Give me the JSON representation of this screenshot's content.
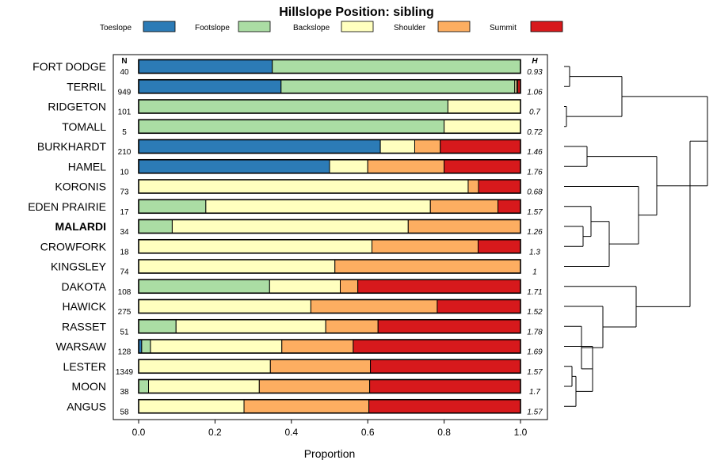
{
  "chart_data": {
    "type": "bar",
    "orientation": "horizontal",
    "stacked": true,
    "title": "Hillslope Position: sibling",
    "xlabel": "Proportion",
    "ylabel": "",
    "xlim": [
      0,
      1
    ],
    "x_ticks": [
      "0.0",
      "0.2",
      "0.4",
      "0.6",
      "0.8",
      "1.0"
    ],
    "n_header": "N",
    "h_header": "H",
    "categories_legend": [
      {
        "name": "Toeslope",
        "color": "#2c7bb6"
      },
      {
        "name": "Footslope",
        "color": "#abdda4"
      },
      {
        "name": "Backslope",
        "color": "#ffffbf"
      },
      {
        "name": "Shoulder",
        "color": "#fdae61"
      },
      {
        "name": "Summit",
        "color": "#d7191c"
      }
    ],
    "rows": [
      {
        "name": "FORT DODGE",
        "n": "40",
        "h": "0.93",
        "bold": false,
        "values": [
          0.35,
          0.65,
          0,
          0,
          0
        ]
      },
      {
        "name": "TERRIL",
        "n": "949",
        "h": "1.06",
        "bold": false,
        "values": [
          0.373,
          0.612,
          0.005,
          0.003,
          0.007
        ]
      },
      {
        "name": "RIDGETON",
        "n": "101",
        "h": "0.7",
        "bold": false,
        "values": [
          0,
          0.81,
          0.19,
          0,
          0
        ]
      },
      {
        "name": "TOMALL",
        "n": "5",
        "h": "0.72",
        "bold": false,
        "values": [
          0,
          0.8,
          0.2,
          0,
          0
        ]
      },
      {
        "name": "BURKHARDT",
        "n": "210",
        "h": "1.46",
        "bold": false,
        "values": [
          0.633,
          0,
          0.09,
          0.067,
          0.21
        ]
      },
      {
        "name": "HAMEL",
        "n": "10",
        "h": "1.76",
        "bold": false,
        "values": [
          0.5,
          0,
          0.1,
          0.2,
          0.2
        ]
      },
      {
        "name": "KORONIS",
        "n": "73",
        "h": "0.68",
        "bold": false,
        "values": [
          0,
          0,
          0.863,
          0.027,
          0.11
        ]
      },
      {
        "name": "EDEN PRAIRIE",
        "n": "17",
        "h": "1.57",
        "bold": false,
        "values": [
          0,
          0.176,
          0.588,
          0.177,
          0.059
        ]
      },
      {
        "name": "MALARDI",
        "n": "34",
        "h": "1.26",
        "bold": true,
        "values": [
          0,
          0.088,
          0.618,
          0.294,
          0
        ]
      },
      {
        "name": "CROWFORK",
        "n": "18",
        "h": "1.3",
        "bold": false,
        "values": [
          0,
          0,
          0.611,
          0.278,
          0.111
        ]
      },
      {
        "name": "KINGSLEY",
        "n": "74",
        "h": "1",
        "bold": false,
        "values": [
          0,
          0,
          0.514,
          0.486,
          0
        ]
      },
      {
        "name": "DAKOTA",
        "n": "108",
        "h": "1.71",
        "bold": false,
        "values": [
          0,
          0.343,
          0.185,
          0.046,
          0.426
        ]
      },
      {
        "name": "HAWICK",
        "n": "275",
        "h": "1.52",
        "bold": false,
        "values": [
          0,
          0,
          0.451,
          0.331,
          0.218
        ]
      },
      {
        "name": "RASSET",
        "n": "51",
        "h": "1.78",
        "bold": false,
        "values": [
          0,
          0.098,
          0.392,
          0.137,
          0.373
        ]
      },
      {
        "name": "WARSAW",
        "n": "128",
        "h": "1.69",
        "bold": false,
        "values": [
          0.008,
          0.023,
          0.344,
          0.187,
          0.438
        ]
      },
      {
        "name": "LESTER",
        "n": "1349",
        "h": "1.57",
        "bold": false,
        "values": [
          0,
          0,
          0.345,
          0.262,
          0.393
        ]
      },
      {
        "name": "MOON",
        "n": "38",
        "h": "1.7",
        "bold": false,
        "values": [
          0,
          0.026,
          0.29,
          0.289,
          0.395
        ]
      },
      {
        "name": "ANGUS",
        "n": "58",
        "h": "1.57",
        "bold": false,
        "values": [
          0,
          0,
          0.276,
          0.327,
          0.397
        ]
      }
    ],
    "dendrogram": "hierarchical clustering of rows by hillslope position proportions"
  }
}
